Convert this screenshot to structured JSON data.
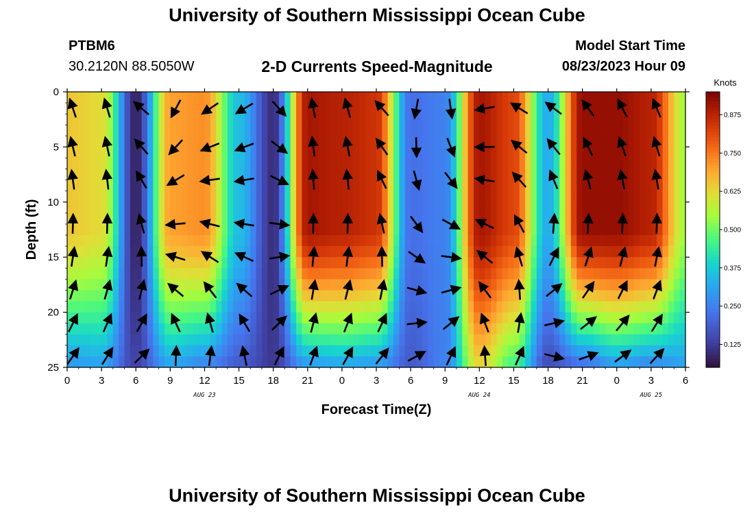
{
  "header": {
    "title": "University of Southern Mississippi Ocean Cube",
    "station_id": "PTBM6",
    "coordinates": "30.2120N  88.5050W",
    "chart_title": "2-D Currents Speed-Magnitude",
    "model_start_label": "Model Start Time",
    "model_start_value": "08/23/2023 Hour 09"
  },
  "footer": {
    "title": "University of Southern Mississippi Ocean Cube"
  },
  "chart_data": {
    "type": "heatmap",
    "title": "2-D Currents Speed-Magnitude",
    "xlabel": "Forecast Time(Z)",
    "ylabel": "Depth (ft)",
    "x_unit": "hours since 08/23/2023 00Z",
    "xlim": [
      0,
      54
    ],
    "ylim": [
      0,
      25
    ],
    "x_ticks": [
      0,
      3,
      6,
      9,
      12,
      15,
      18,
      21,
      24,
      27,
      30,
      33,
      36,
      39,
      42,
      45,
      48,
      51,
      54
    ],
    "x_tick_labels": [
      "0",
      "3",
      "6",
      "9",
      "12",
      "15",
      "18",
      "21",
      "0",
      "3",
      "6",
      "9",
      "12",
      "15",
      "18",
      "21",
      "0",
      "3",
      "6"
    ],
    "y_ticks": [
      0,
      5,
      10,
      15,
      20,
      25
    ],
    "y_tick_labels": [
      "0",
      "5",
      "10",
      "15",
      "20",
      "25"
    ],
    "date_labels": [
      {
        "text": "AUG 23",
        "x": 12
      },
      {
        "text": "AUG 24",
        "x": 36
      },
      {
        "text": "AUG 25",
        "x": 51
      }
    ],
    "colorbar": {
      "label": "Knots",
      "min": 0.05,
      "max": 0.95,
      "ticks": [
        0.125,
        0.25,
        0.375,
        0.5,
        0.625,
        0.75,
        0.875
      ],
      "tick_labels": [
        "0.125",
        "0.250",
        "0.375",
        "0.500",
        "0.625",
        "0.750",
        "0.875"
      ]
    },
    "speed_profiles_by_hour": {
      "hours": [
        0,
        3,
        6,
        9,
        12,
        15,
        18,
        21,
        24,
        27,
        30,
        33,
        36,
        39,
        42,
        45,
        48,
        51,
        54
      ],
      "surface": [
        0.65,
        0.62,
        0.08,
        0.7,
        0.72,
        0.35,
        0.1,
        0.9,
        0.88,
        0.85,
        0.22,
        0.25,
        0.9,
        0.82,
        0.32,
        0.92,
        0.92,
        0.88,
        0.55
      ],
      "bottom": [
        0.28,
        0.3,
        0.14,
        0.3,
        0.25,
        0.18,
        0.12,
        0.28,
        0.3,
        0.28,
        0.18,
        0.25,
        0.62,
        0.45,
        0.15,
        0.2,
        0.28,
        0.25,
        0.3
      ]
    },
    "vector_depths_ft": [
      1.5,
      5,
      8,
      12,
      15,
      18,
      21,
      24
    ],
    "vector_directions_deg_by_hour": {
      "hours": [
        0,
        3,
        6,
        9,
        12,
        15,
        18,
        21,
        24,
        27,
        30,
        33,
        36,
        39,
        42,
        45,
        48,
        51,
        54
      ],
      "surface": [
        340,
        345,
        330,
        200,
        230,
        250,
        170,
        350,
        345,
        340,
        200,
        160,
        250,
        300,
        300,
        320,
        330,
        340,
        320
      ],
      "bottom": [
        40,
        30,
        60,
        10,
        20,
        350,
        20,
        20,
        30,
        40,
        60,
        20,
        0,
        10,
        120,
        80,
        60,
        50,
        30
      ]
    }
  }
}
